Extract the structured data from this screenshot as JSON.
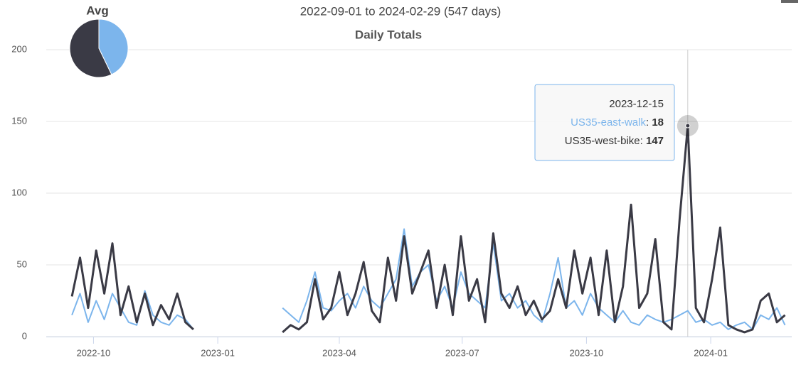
{
  "chart_data": {
    "type": "line",
    "title": "Daily Totals",
    "subtitle": "2022-09-01 to 2024-02-29 (547 days)",
    "x": [
      "2022-09-15",
      "2022-09-21",
      "2022-09-27",
      "2022-10-03",
      "2022-10-09",
      "2022-10-15",
      "2022-10-21",
      "2022-10-27",
      "2022-11-02",
      "2022-11-08",
      "2022-11-14",
      "2022-11-20",
      "2022-11-26",
      "2022-12-02",
      "2022-12-08",
      "2022-12-14",
      "2022-12-20",
      "2022-12-26",
      "2023-01-01",
      "2023-01-07",
      "2023-01-13",
      "2023-01-19",
      "2023-01-25",
      "2023-01-31",
      "2023-02-06",
      "2023-02-12",
      "2023-02-18",
      "2023-02-24",
      "2023-03-02",
      "2023-03-08",
      "2023-03-14",
      "2023-03-20",
      "2023-03-26",
      "2023-04-01",
      "2023-04-07",
      "2023-04-13",
      "2023-04-19",
      "2023-04-25",
      "2023-05-01",
      "2023-05-07",
      "2023-05-13",
      "2023-05-19",
      "2023-05-25",
      "2023-05-31",
      "2023-06-06",
      "2023-06-12",
      "2023-06-18",
      "2023-06-24",
      "2023-06-30",
      "2023-07-06",
      "2023-07-12",
      "2023-07-18",
      "2023-07-24",
      "2023-07-30",
      "2023-08-05",
      "2023-08-11",
      "2023-08-17",
      "2023-08-23",
      "2023-08-29",
      "2023-09-04",
      "2023-09-10",
      "2023-09-16",
      "2023-09-22",
      "2023-09-28",
      "2023-10-04",
      "2023-10-10",
      "2023-10-16",
      "2023-10-22",
      "2023-10-28",
      "2023-11-03",
      "2023-11-09",
      "2023-11-15",
      "2023-11-21",
      "2023-11-27",
      "2023-12-03",
      "2023-12-09",
      "2023-12-15",
      "2023-12-21",
      "2023-12-27",
      "2024-01-02",
      "2024-01-08",
      "2024-01-14",
      "2024-01-20",
      "2024-01-26",
      "2024-02-01",
      "2024-02-07",
      "2024-02-13",
      "2024-02-19",
      "2024-02-25"
    ],
    "series": [
      {
        "name": "US35-east-walk",
        "color": "#7cb5ec",
        "values": [
          15,
          30,
          10,
          25,
          12,
          30,
          20,
          10,
          8,
          32,
          15,
          10,
          8,
          15,
          12,
          5,
          null,
          null,
          null,
          null,
          null,
          null,
          null,
          null,
          null,
          null,
          20,
          15,
          10,
          25,
          45,
          20,
          18,
          25,
          30,
          20,
          35,
          25,
          20,
          30,
          40,
          75,
          35,
          45,
          50,
          25,
          35,
          20,
          45,
          30,
          25,
          20,
          65,
          25,
          30,
          20,
          25,
          15,
          10,
          30,
          55,
          20,
          25,
          15,
          30,
          20,
          15,
          10,
          18,
          10,
          8,
          15,
          12,
          10,
          12,
          15,
          18,
          10,
          12,
          8,
          10,
          5,
          8,
          10,
          5,
          15,
          12,
          20,
          8
        ]
      },
      {
        "name": "US35-west-bike",
        "color": "#3a3a45",
        "values": [
          28,
          55,
          20,
          60,
          30,
          65,
          15,
          35,
          10,
          30,
          8,
          22,
          12,
          30,
          10,
          5,
          null,
          null,
          null,
          null,
          null,
          null,
          null,
          null,
          null,
          null,
          3,
          8,
          5,
          10,
          40,
          12,
          20,
          45,
          15,
          30,
          52,
          18,
          10,
          55,
          25,
          70,
          30,
          45,
          60,
          20,
          50,
          15,
          70,
          25,
          40,
          10,
          72,
          30,
          20,
          35,
          15,
          25,
          12,
          18,
          40,
          20,
          60,
          30,
          55,
          15,
          60,
          10,
          35,
          92,
          20,
          30,
          68,
          10,
          5,
          82,
          147,
          20,
          10,
          40,
          76,
          8,
          5,
          3,
          5,
          25,
          30,
          10,
          15
        ]
      }
    ],
    "xlim": [
      "2022-08-27",
      "2024-03-01"
    ],
    "xticks": [
      {
        "value": "2022-10-01",
        "label": "2022-10"
      },
      {
        "value": "2023-01-01",
        "label": "2023-01"
      },
      {
        "value": "2023-04-01",
        "label": "2023-04"
      },
      {
        "value": "2023-07-01",
        "label": "2023-07"
      },
      {
        "value": "2023-10-01",
        "label": "2023-10"
      },
      {
        "value": "2024-01-01",
        "label": "2024-01"
      }
    ],
    "ylim": [
      0,
      200
    ],
    "yticks": [
      0,
      50,
      100,
      150,
      200
    ],
    "grid": true,
    "tooltip": {
      "x": "2023-12-15"
    },
    "pie": {
      "title": "Avg",
      "values": [
        15,
        20
      ]
    }
  }
}
